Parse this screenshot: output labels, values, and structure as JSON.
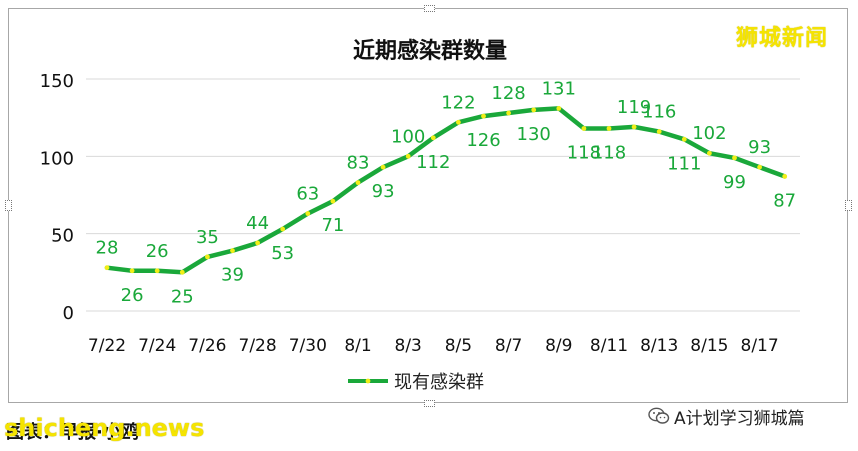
{
  "watermark_top": "狮城新闻",
  "credit": "图表：早报·小鸥",
  "watermark_bottom": "shicheng.news",
  "wechat_label": "A计划学习狮城篇",
  "icons": {
    "wechat": "wechat-icon"
  },
  "colors": {
    "line": "#1aa83a",
    "marker": "#f1ee18",
    "label": "#1aa83a",
    "grid": "#d9d9d9",
    "watermark": "#f5e400"
  },
  "chart_data": {
    "type": "line",
    "title": "近期感染群数量",
    "xlabel": "",
    "ylabel": "",
    "ylim": [
      0,
      150
    ],
    "yticks": [
      "0",
      "50",
      "100",
      "150"
    ],
    "grid": true,
    "legend_position": "bottom",
    "x": [
      "7/22",
      "7/23",
      "7/24",
      "7/25",
      "7/26",
      "7/27",
      "7/28",
      "7/29",
      "7/30",
      "7/31",
      "8/1",
      "8/2",
      "8/3",
      "8/4",
      "8/5",
      "8/6",
      "8/7",
      "8/8",
      "8/9",
      "8/10",
      "8/11",
      "8/12",
      "8/13",
      "8/14",
      "8/15",
      "8/16",
      "8/17",
      "8/18"
    ],
    "xtick_labels": [
      "7/22",
      "7/24",
      "7/26",
      "7/28",
      "7/30",
      "8/1",
      "8/3",
      "8/5",
      "8/7",
      "8/9",
      "8/11",
      "8/13",
      "8/15",
      "8/17"
    ],
    "series": [
      {
        "name": "现有感染群",
        "values": [
          28,
          26,
          26,
          25,
          35,
          39,
          44,
          53,
          63,
          71,
          83,
          93,
          100,
          112,
          122,
          126,
          128,
          130,
          131,
          118,
          118,
          119,
          116,
          111,
          102,
          99,
          93,
          87
        ],
        "value_labels": [
          "28",
          "26",
          "26",
          "25",
          "35",
          "39",
          "44",
          "53",
          "63",
          "71",
          "83",
          "93",
          "100",
          "112",
          "122",
          "126",
          "128",
          "130",
          "131",
          "118",
          "118",
          "119",
          "116",
          "111",
          "102",
          "99",
          "93",
          "87"
        ]
      }
    ]
  }
}
